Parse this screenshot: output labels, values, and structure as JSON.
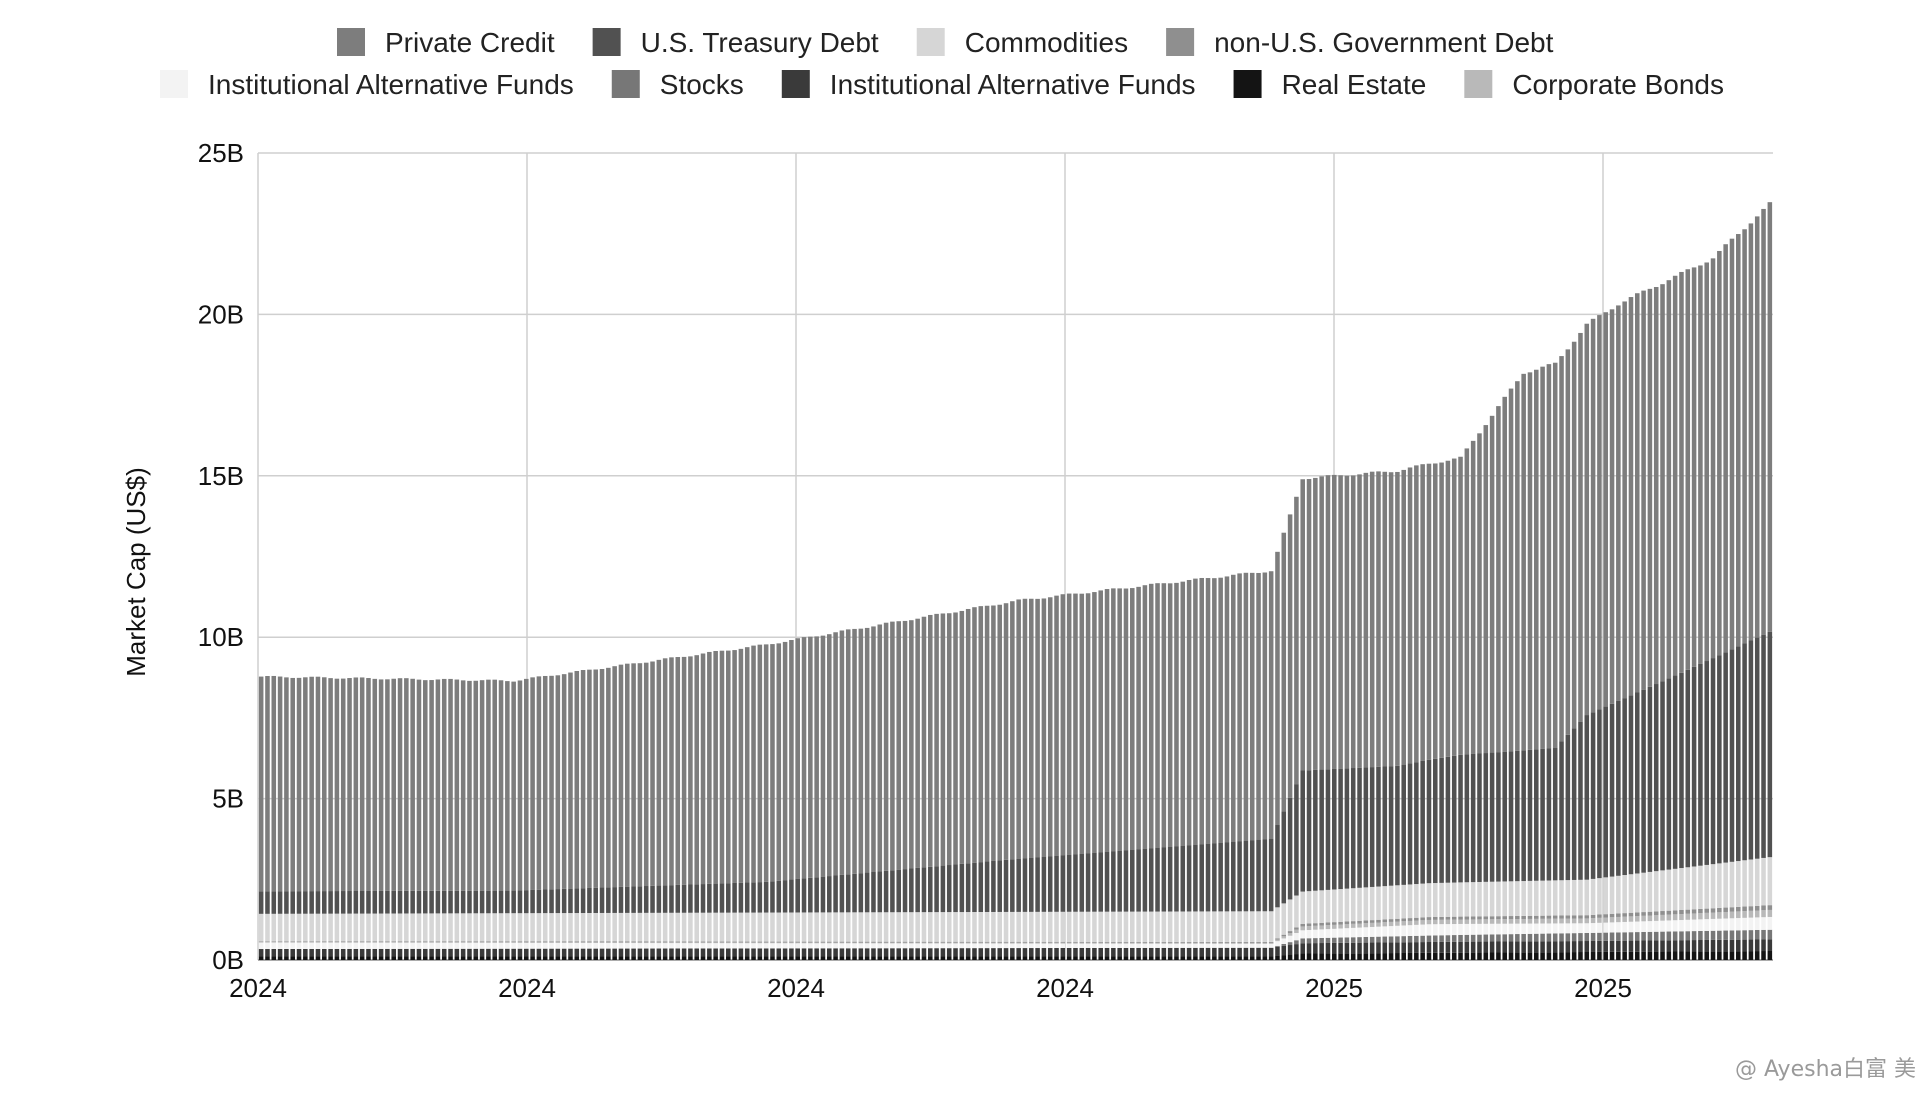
{
  "watermark": "@ Ayesha白富 美",
  "chart_data": {
    "type": "bar",
    "stacked": true,
    "ylabel": "Market Cap (US$)",
    "ylim": [
      0,
      25
    ],
    "yticks": [
      "0B",
      "5B",
      "10B",
      "15B",
      "20B",
      "25B"
    ],
    "xtick_labels": [
      "2024",
      "2024",
      "2024",
      "2024",
      "2025",
      "2025"
    ],
    "grid": true,
    "legend_position": "top",
    "n_bars": 240,
    "series": [
      {
        "name": "Real Estate",
        "color": "#141414",
        "anchors": [
          [
            0,
            0.12
          ],
          [
            160,
            0.12
          ],
          [
            165,
            0.2
          ],
          [
            240,
            0.28
          ]
        ]
      },
      {
        "name": "Institutional Alternative Funds",
        "color": "#3a3a3a",
        "anchors": [
          [
            0,
            0.22
          ],
          [
            160,
            0.26
          ],
          [
            165,
            0.32
          ],
          [
            190,
            0.34
          ],
          [
            210,
            0.34
          ],
          [
            240,
            0.36
          ]
        ]
      },
      {
        "name": "Stocks",
        "color": "#777777",
        "anchors": [
          [
            0,
            0.0
          ],
          [
            160,
            0.0
          ],
          [
            165,
            0.15
          ],
          [
            185,
            0.2
          ],
          [
            210,
            0.25
          ],
          [
            240,
            0.3
          ]
        ]
      },
      {
        "name": "Institutional Alternative Funds",
        "color": "#f3f3f3",
        "anchors": [
          [
            0,
            0.2
          ],
          [
            100,
            0.15
          ],
          [
            160,
            0.12
          ],
          [
            165,
            0.25
          ],
          [
            185,
            0.35
          ],
          [
            210,
            0.3
          ],
          [
            240,
            0.4
          ]
        ]
      },
      {
        "name": "Corporate Bonds",
        "color": "#b9b9b9",
        "anchors": [
          [
            0,
            0.02
          ],
          [
            160,
            0.03
          ],
          [
            165,
            0.12
          ],
          [
            210,
            0.15
          ],
          [
            240,
            0.22
          ]
        ]
      },
      {
        "name": "non-U.S. Government Debt",
        "color": "#8f8f8f",
        "anchors": [
          [
            0,
            0.02
          ],
          [
            160,
            0.03
          ],
          [
            165,
            0.08
          ],
          [
            210,
            0.1
          ],
          [
            240,
            0.15
          ]
        ]
      },
      {
        "name": "Commodities",
        "color": "#d6d6d6",
        "anchors": [
          [
            0,
            0.85
          ],
          [
            80,
            0.9
          ],
          [
            160,
            0.95
          ],
          [
            165,
            1.0
          ],
          [
            185,
            1.05
          ],
          [
            210,
            1.1
          ],
          [
            240,
            1.5
          ]
        ]
      },
      {
        "name": "U.S. Treasury Debt",
        "color": "#515151",
        "anchors": [
          [
            0,
            0.7
          ],
          [
            40,
            0.7
          ],
          [
            80,
            0.95
          ],
          [
            120,
            1.65
          ],
          [
            160,
            2.25
          ],
          [
            165,
            3.75
          ],
          [
            180,
            3.7
          ],
          [
            190,
            3.95
          ],
          [
            205,
            4.1
          ],
          [
            210,
            5.1
          ],
          [
            225,
            6.05
          ],
          [
            240,
            7.05
          ]
        ]
      },
      {
        "name": "Private Credit",
        "color": "#7d7d7d",
        "anchors": [
          [
            0,
            6.65
          ],
          [
            40,
            6.5
          ],
          [
            80,
            7.35
          ],
          [
            120,
            8.0
          ],
          [
            160,
            8.3
          ],
          [
            165,
            9.05
          ],
          [
            190,
            9.2
          ],
          [
            200,
            11.7
          ],
          [
            215,
            12.3
          ],
          [
            230,
            12.4
          ],
          [
            240,
            13.35
          ]
        ]
      }
    ]
  },
  "legend": {
    "row1": [
      {
        "label": "Private Credit",
        "color": "#7d7d7d"
      },
      {
        "label": "U.S. Treasury Debt",
        "color": "#515151"
      },
      {
        "label": "Commodities",
        "color": "#d6d6d6"
      },
      {
        "label": "non-U.S. Government Debt",
        "color": "#8f8f8f"
      }
    ],
    "row2": [
      {
        "label": "Institutional Alternative Funds",
        "color": "#f3f3f3"
      },
      {
        "label": "Stocks",
        "color": "#777777"
      },
      {
        "label": "Institutional Alternative Funds",
        "color": "#3a3a3a"
      },
      {
        "label": "Real Estate",
        "color": "#141414"
      },
      {
        "label": "Corporate Bonds",
        "color": "#b9b9b9"
      }
    ]
  }
}
